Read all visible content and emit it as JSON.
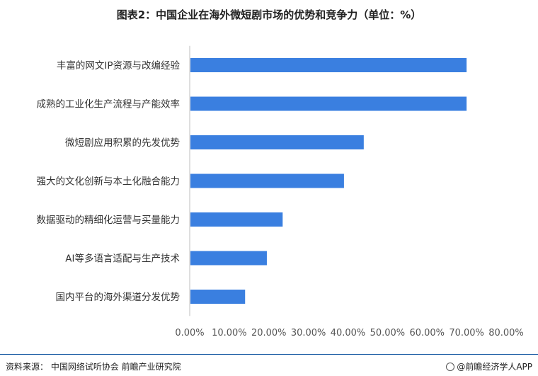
{
  "title": "图表2：中国企业在海外微短剧市场的优势和竞争力（单位：%）",
  "chart_data": {
    "type": "bar",
    "orientation": "horizontal",
    "categories": [
      "丰富的网文IP资源与改编经验",
      "成熟的工业化生产流程与产能效率",
      "微短剧应用积累的先发优势",
      "强大的文化创新与本土化融合能力",
      "数据驱动的精细化运营与买量能力",
      "AI等多语言适配与生产技术",
      "国内平台的海外渠道分发优势"
    ],
    "values": [
      70,
      70,
      44,
      39,
      23.5,
      19.5,
      14
    ],
    "xlim": [
      0,
      80
    ],
    "xticks": [
      "0.00%",
      "10.00%",
      "20.00%",
      "30.00%",
      "40.00%",
      "50.00%",
      "60.00%",
      "70.00%",
      "80.00%"
    ],
    "xtick_values": [
      0,
      10,
      20,
      30,
      40,
      50,
      60,
      70,
      80
    ],
    "bar_color": "#3a7fe0",
    "grid": false,
    "legend": "none"
  },
  "footer": {
    "source": "资料来源：  中国网络试听协会  前瞻产业研究院",
    "brand": "@前瞻经济学人APP"
  }
}
